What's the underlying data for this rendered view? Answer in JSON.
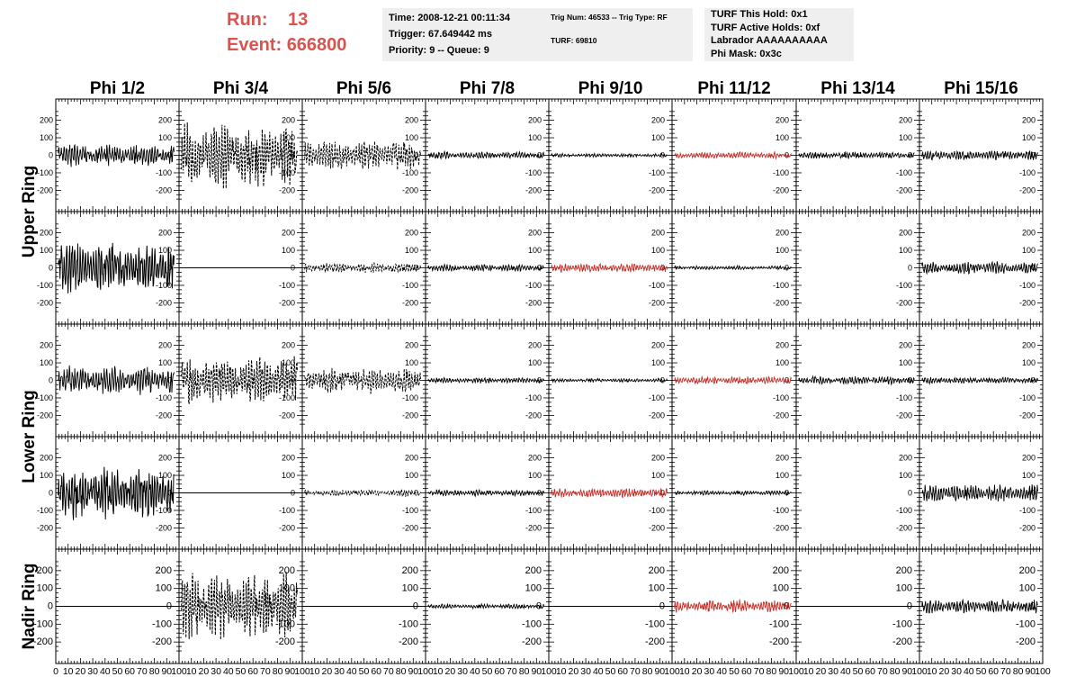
{
  "header": {
    "run_label": "Run:",
    "run_value": "13",
    "event_label": "Event:",
    "event_value": "666800",
    "time": "Time: 2008-12-21 00:11:34",
    "trigger": "Trigger: 67.649442 ms",
    "priority": "Priority: 9 -- Queue: 9",
    "trig_num": "Trig Num: 46533 -- Trig Type: RF",
    "turf": "TURF: 69810",
    "turf_this_hold": "TURF This Hold: 0x1",
    "turf_active_holds": "TURF Active Holds: 0xf",
    "labrador": "Labrador AAAAAAAAAA",
    "phi_mask": "Phi Mask: 0x3c"
  },
  "chart_data": {
    "type": "line",
    "columns": [
      "Phi 1/2",
      "Phi 3/4",
      "Phi 5/6",
      "Phi 7/8",
      "Phi 9/10",
      "Phi 11/12",
      "Phi 13/14",
      "Phi 15/16"
    ],
    "row_groups": [
      "Upper Ring",
      "Lower Ring",
      "Nadir Ring"
    ],
    "panel_rows": 5,
    "xlim": [
      0,
      100
    ],
    "ylim": [
      -280,
      280
    ],
    "x_ticks": [
      0,
      10,
      20,
      30,
      40,
      50,
      60,
      70,
      80,
      90,
      100
    ],
    "x_tick_labels": [
      "0",
      "10",
      "20",
      "30",
      "40",
      "50",
      "60",
      "70",
      "80",
      "90",
      "100"
    ],
    "y_ticks": [
      200,
      100,
      0,
      -100,
      -200
    ],
    "y_tick_labels": [
      "200",
      "100",
      "0",
      "-100",
      "-200"
    ],
    "colors": {
      "normal": "#000000",
      "triggered": "#c0302a"
    },
    "panels": [
      [
        {
          "amp": 70,
          "style": "solid",
          "color": "normal"
        },
        {
          "amp": 210,
          "style": "dashed",
          "color": "normal"
        },
        {
          "amp": 95,
          "style": "dashed",
          "color": "normal"
        },
        {
          "amp": 22,
          "style": "solid",
          "color": "normal"
        },
        {
          "amp": 12,
          "style": "solid",
          "color": "normal"
        },
        {
          "amp": 20,
          "style": "solid",
          "color": "triggered"
        },
        {
          "amp": 22,
          "style": "solid",
          "color": "normal"
        },
        {
          "amp": 30,
          "style": "solid",
          "color": "normal"
        }
      ],
      [
        {
          "amp": 170,
          "style": "solid",
          "color": "normal"
        },
        {
          "amp": 0,
          "style": "solid",
          "color": "normal"
        },
        {
          "amp": 30,
          "style": "dashed",
          "color": "normal"
        },
        {
          "amp": 22,
          "style": "solid",
          "color": "normal"
        },
        {
          "amp": 28,
          "style": "solid",
          "color": "triggered"
        },
        {
          "amp": 12,
          "style": "solid",
          "color": "normal"
        },
        {
          "amp": 0,
          "style": "none",
          "color": "normal"
        },
        {
          "amp": 40,
          "style": "solid",
          "color": "normal"
        }
      ],
      [
        {
          "amp": 90,
          "style": "solid",
          "color": "normal"
        },
        {
          "amp": 150,
          "style": "dashed",
          "color": "normal"
        },
        {
          "amp": 80,
          "style": "dashed",
          "color": "normal"
        },
        {
          "amp": 18,
          "style": "solid",
          "color": "normal"
        },
        {
          "amp": 12,
          "style": "solid",
          "color": "normal"
        },
        {
          "amp": 25,
          "style": "solid",
          "color": "triggered"
        },
        {
          "amp": 25,
          "style": "solid",
          "color": "normal"
        },
        {
          "amp": 20,
          "style": "solid",
          "color": "normal"
        }
      ],
      [
        {
          "amp": 160,
          "style": "solid",
          "color": "normal"
        },
        {
          "amp": 0,
          "style": "solid",
          "color": "normal"
        },
        {
          "amp": 22,
          "style": "dashed",
          "color": "normal"
        },
        {
          "amp": 20,
          "style": "solid",
          "color": "normal"
        },
        {
          "amp": 30,
          "style": "solid",
          "color": "triggered"
        },
        {
          "amp": 15,
          "style": "solid",
          "color": "normal"
        },
        {
          "amp": 0,
          "style": "none",
          "color": "normal"
        },
        {
          "amp": 55,
          "style": "solid",
          "color": "normal"
        }
      ],
      [
        {
          "amp": 0,
          "style": "solid",
          "color": "normal"
        },
        {
          "amp": 210,
          "style": "dashed",
          "color": "normal"
        },
        {
          "amp": 0,
          "style": "solid",
          "color": "normal"
        },
        {
          "amp": 15,
          "style": "solid",
          "color": "normal"
        },
        {
          "amp": 0,
          "style": "solid",
          "color": "normal"
        },
        {
          "amp": 40,
          "style": "solid",
          "color": "triggered"
        },
        {
          "amp": 0,
          "style": "solid",
          "color": "normal"
        },
        {
          "amp": 40,
          "style": "solid",
          "color": "normal"
        }
      ]
    ]
  }
}
